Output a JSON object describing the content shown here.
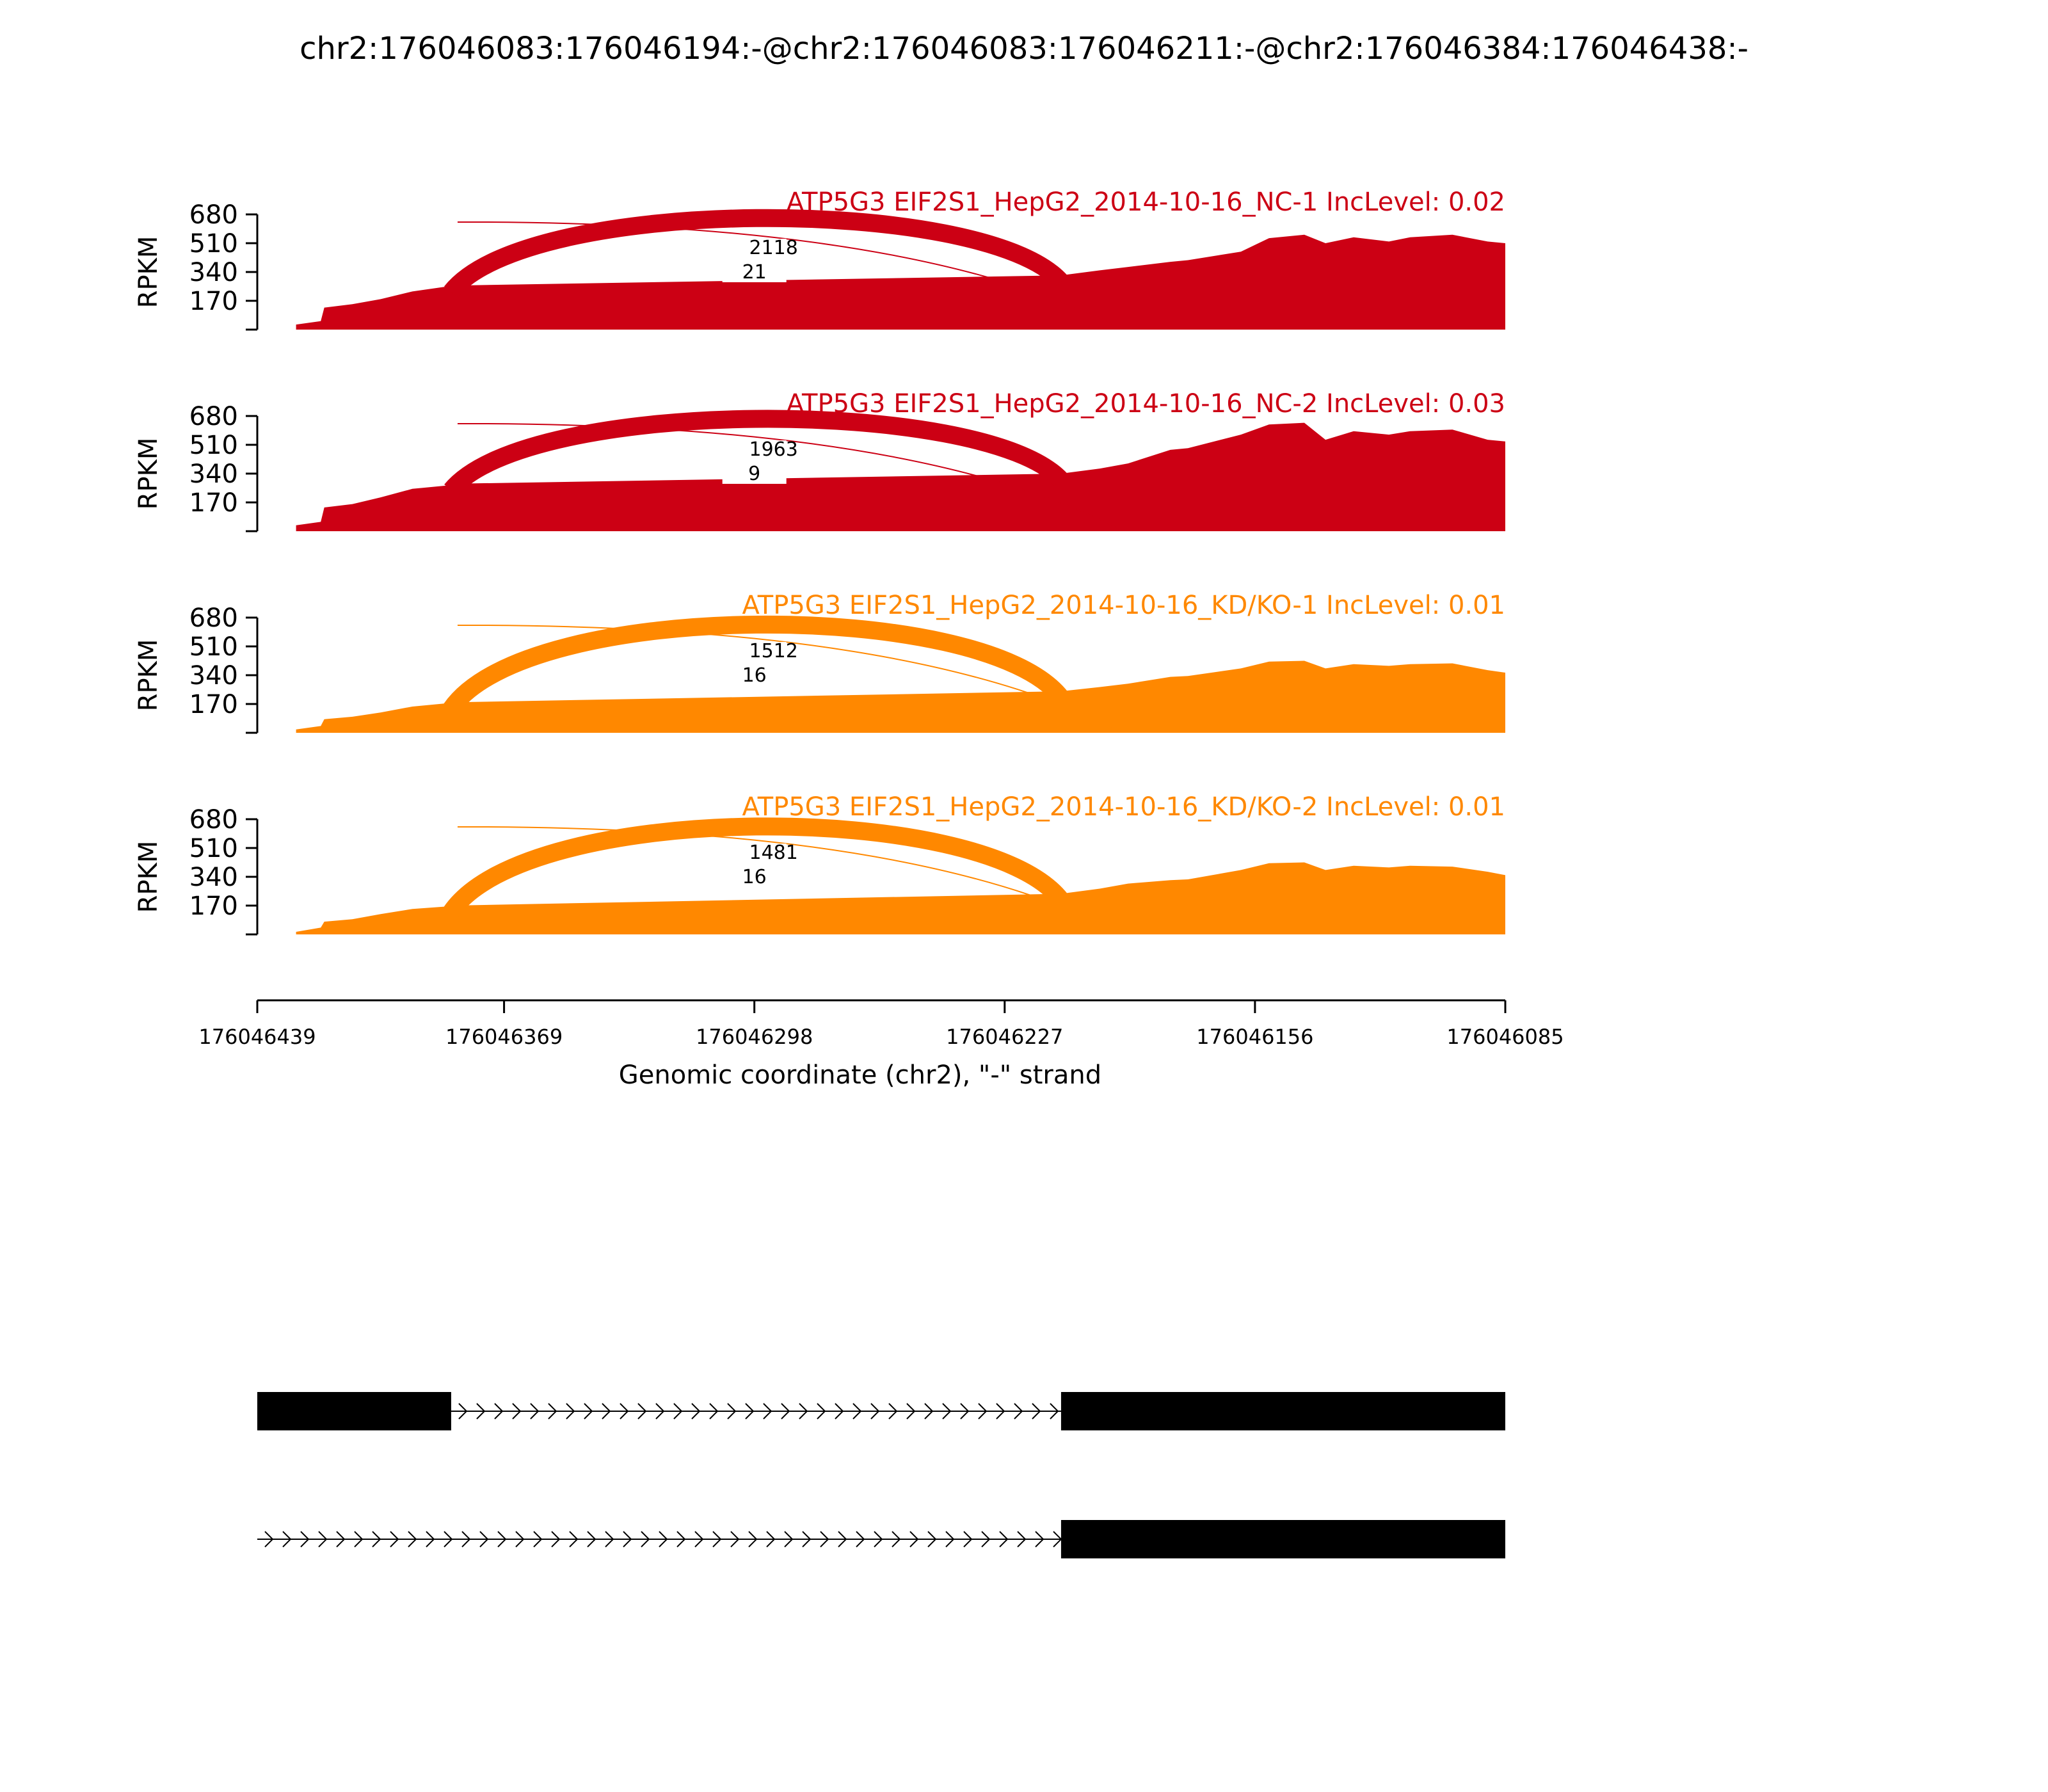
{
  "title": "chr2:176046083:176046194:-@chr2:176046083:176046211:-@chr2:176046384:176046438:-",
  "colors": {
    "nc": "#cc0014",
    "kd": "#ff8800",
    "axis": "#000000",
    "gene": "#000000"
  },
  "x_axis": {
    "label": "Genomic coordinate (chr2), \"-\" strand",
    "ticks": [
      "176046439",
      "176046369",
      "176046298",
      "176046227",
      "176046156",
      "176046085"
    ]
  },
  "chart_data": {
    "type": "area",
    "description_of_axes": "x = genomic coordinate on chr2, minus strand (descending left to right); y = RPKM",
    "x_range": [
      176046439,
      176046085
    ],
    "ylabel": "RPKM",
    "y_ticks": [
      "680",
      "510",
      "340",
      "170"
    ],
    "ylim": [
      0,
      680
    ],
    "exons": [
      {
        "start": 176046438,
        "end": 176046384
      },
      {
        "start": 176046211,
        "end": 176046083
      }
    ],
    "panels": [
      {
        "label": "ATP5G3 EIF2S1_HepG2_2014-10-16_NC-1 IncLevel: 0.02",
        "color_key": "nc",
        "junctions": [
          {
            "count_label": "2118",
            "count": 2118,
            "from": 176046384,
            "to": 176046211
          },
          {
            "count_label": "21",
            "count": 21,
            "from": 176046384,
            "to": 176046194
          }
        ],
        "coverage": [
          [
            176046439,
            0
          ],
          [
            176046428,
            0
          ],
          [
            176046428,
            30
          ],
          [
            176046421,
            50
          ],
          [
            176046420,
            130
          ],
          [
            176046412,
            150
          ],
          [
            176046404,
            180
          ],
          [
            176046395,
            225
          ],
          [
            176046385,
            255
          ],
          [
            176046384,
            260
          ],
          [
            176046211,
            320
          ],
          [
            176046200,
            350
          ],
          [
            176046192,
            370
          ],
          [
            176046180,
            400
          ],
          [
            176046175,
            410
          ],
          [
            176046160,
            460
          ],
          [
            176046152,
            540
          ],
          [
            176046142,
            560
          ],
          [
            176046136,
            510
          ],
          [
            176046128,
            545
          ],
          [
            176046118,
            520
          ],
          [
            176046112,
            545
          ],
          [
            176046100,
            560
          ],
          [
            176046090,
            520
          ],
          [
            176046085,
            510
          ]
        ]
      },
      {
        "label": "ATP5G3 EIF2S1_HepG2_2014-10-16_NC-2 IncLevel: 0.03",
        "color_key": "nc",
        "junctions": [
          {
            "count_label": "1963",
            "count": 1963,
            "from": 176046384,
            "to": 176046211
          },
          {
            "count_label": "9",
            "count": 9,
            "from": 176046384,
            "to": 176046194
          }
        ],
        "coverage": [
          [
            176046439,
            0
          ],
          [
            176046428,
            0
          ],
          [
            176046428,
            35
          ],
          [
            176046421,
            55
          ],
          [
            176046420,
            140
          ],
          [
            176046412,
            160
          ],
          [
            176046404,
            200
          ],
          [
            176046395,
            250
          ],
          [
            176046385,
            270
          ],
          [
            176046384,
            280
          ],
          [
            176046211,
            340
          ],
          [
            176046200,
            370
          ],
          [
            176046192,
            400
          ],
          [
            176046180,
            480
          ],
          [
            176046175,
            490
          ],
          [
            176046160,
            570
          ],
          [
            176046152,
            630
          ],
          [
            176046142,
            640
          ],
          [
            176046136,
            540
          ],
          [
            176046128,
            590
          ],
          [
            176046118,
            570
          ],
          [
            176046112,
            590
          ],
          [
            176046100,
            600
          ],
          [
            176046090,
            540
          ],
          [
            176046085,
            530
          ]
        ]
      },
      {
        "label": "ATP5G3 EIF2S1_HepG2_2014-10-16_KD/KO-1 IncLevel: 0.01",
        "color_key": "kd",
        "junctions": [
          {
            "count_label": "1512",
            "count": 1512,
            "from": 176046384,
            "to": 176046211
          },
          {
            "count_label": "16",
            "count": 16,
            "from": 176046384,
            "to": 176046194
          }
        ],
        "coverage": [
          [
            176046439,
            0
          ],
          [
            176046428,
            0
          ],
          [
            176046428,
            20
          ],
          [
            176046421,
            40
          ],
          [
            176046420,
            80
          ],
          [
            176046412,
            95
          ],
          [
            176046404,
            120
          ],
          [
            176046395,
            155
          ],
          [
            176046385,
            175
          ],
          [
            176046384,
            180
          ],
          [
            176046211,
            245
          ],
          [
            176046200,
            270
          ],
          [
            176046192,
            290
          ],
          [
            176046180,
            330
          ],
          [
            176046175,
            335
          ],
          [
            176046160,
            380
          ],
          [
            176046152,
            420
          ],
          [
            176046142,
            425
          ],
          [
            176046136,
            380
          ],
          [
            176046128,
            405
          ],
          [
            176046118,
            395
          ],
          [
            176046112,
            405
          ],
          [
            176046100,
            410
          ],
          [
            176046090,
            370
          ],
          [
            176046085,
            355
          ]
        ]
      },
      {
        "label": "ATP5G3 EIF2S1_HepG2_2014-10-16_KD/KO-2 IncLevel: 0.01",
        "color_key": "kd",
        "junctions": [
          {
            "count_label": "1481",
            "count": 1481,
            "from": 176046384,
            "to": 176046211
          },
          {
            "count_label": "16",
            "count": 16,
            "from": 176046384,
            "to": 176046194
          }
        ],
        "coverage": [
          [
            176046439,
            0
          ],
          [
            176046428,
            0
          ],
          [
            176046428,
            15
          ],
          [
            176046421,
            40
          ],
          [
            176046420,
            75
          ],
          [
            176046412,
            90
          ],
          [
            176046404,
            120
          ],
          [
            176046395,
            150
          ],
          [
            176046385,
            165
          ],
          [
            176046384,
            170
          ],
          [
            176046211,
            240
          ],
          [
            176046200,
            270
          ],
          [
            176046192,
            300
          ],
          [
            176046180,
            320
          ],
          [
            176046175,
            325
          ],
          [
            176046160,
            380
          ],
          [
            176046152,
            420
          ],
          [
            176046142,
            425
          ],
          [
            176046136,
            380
          ],
          [
            176046128,
            405
          ],
          [
            176046118,
            395
          ],
          [
            176046112,
            405
          ],
          [
            176046100,
            400
          ],
          [
            176046090,
            370
          ],
          [
            176046085,
            350
          ]
        ]
      }
    ],
    "gene_models": [
      {
        "exons": [
          {
            "start": 176046439,
            "end": 176046384
          },
          {
            "start": 176046211,
            "end": 176046085
          }
        ],
        "intron": {
          "start": 176046384,
          "end": 176046211
        }
      },
      {
        "exons": [
          {
            "start": 176046211,
            "end": 176046085
          }
        ],
        "intron": {
          "start": 176046439,
          "end": 176046211
        }
      }
    ]
  }
}
